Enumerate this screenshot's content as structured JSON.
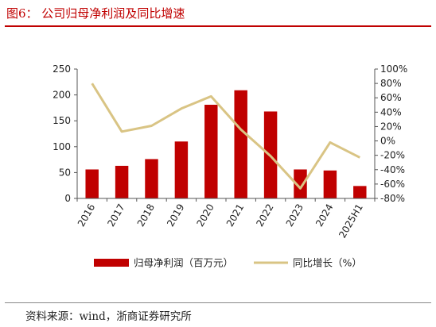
{
  "figure": {
    "title": "图6： 公司归母净利润及同比增速",
    "source": "资料来源：wind，浙商证券研究所"
  },
  "chart_data": {
    "type": "bar",
    "categories": [
      "2016",
      "2017",
      "2018",
      "2019",
      "2020",
      "2021",
      "2022",
      "2023",
      "2024",
      "2025H1"
    ],
    "series": [
      {
        "name": "归母净利润（百万元）",
        "type": "bar",
        "axis": "left",
        "color": "#c00000",
        "values": [
          56,
          63,
          76,
          110,
          181,
          209,
          168,
          56,
          54,
          24
        ]
      },
      {
        "name": "同比增长（%）",
        "type": "line",
        "axis": "right",
        "color": "#d9c484",
        "values": [
          80,
          13,
          21,
          45,
          62,
          16,
          -21,
          -66,
          -2,
          -23
        ]
      }
    ],
    "y_left": {
      "min": 0,
      "max": 250,
      "ticks": [
        0,
        50,
        100,
        150,
        200,
        250
      ]
    },
    "y_right": {
      "min": -80,
      "max": 100,
      "step": 20,
      "tick_suffix": "%"
    },
    "legend_position": "bottom",
    "grid": false
  }
}
